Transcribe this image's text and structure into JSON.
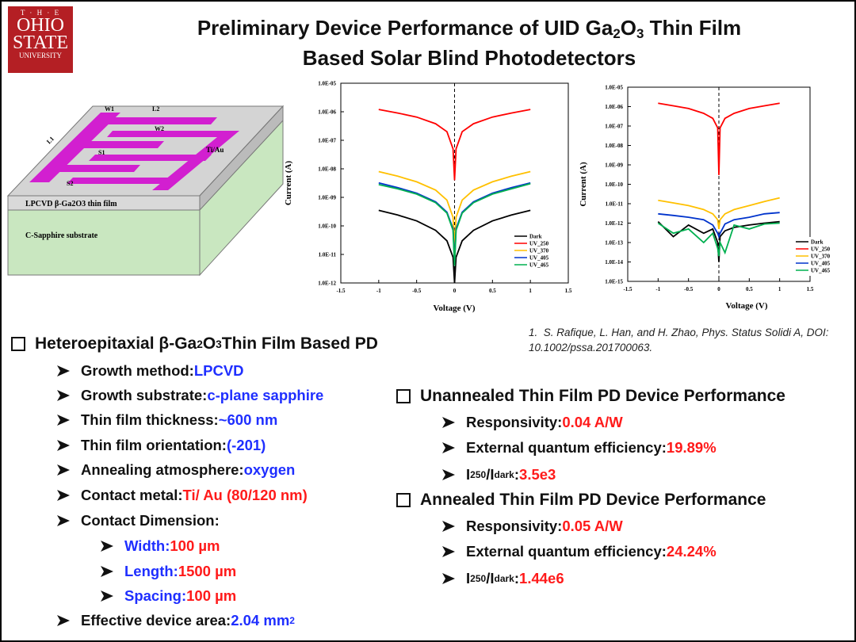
{
  "logo": {
    "top": "T · H · E",
    "name1": "OHIO",
    "name2": "STATE",
    "bottom": "UNIVERSITY"
  },
  "title": {
    "line1": [
      "Preliminary Device Performance of UID Ga",
      "2",
      "O",
      "3",
      " Thin Film"
    ],
    "line2": "Based Solar Blind Photodetectors"
  },
  "diagram": {
    "labels": [
      "W1",
      "L2",
      "W2",
      "L1",
      "S1",
      "Ti/Au",
      "S2"
    ],
    "film": "LPCVD β-Ga2O3 thin film",
    "substrate": "C-Sapphire substrate"
  },
  "reference": {
    "number": "1.",
    "text": "S. Rafique, L. Han, and H. Zhao, Phys. Status Solidi A, DOI: 10.1002/pssa.201700063."
  },
  "left": {
    "heading": [
      "Heteroepitaxial β-Ga",
      "2",
      "O",
      "3",
      " Thin Film Based PD"
    ],
    "items": [
      {
        "label": "Growth method: ",
        "value": "LPCVD"
      },
      {
        "label": "Growth substrate: ",
        "value": "c-plane sapphire"
      },
      {
        "label": "Thin film thickness: ",
        "value": "~600 nm"
      },
      {
        "label": "Thin film orientation: ",
        "value": "(-201)"
      },
      {
        "label": "Annealing atmosphere: ",
        "value": "oxygen"
      },
      {
        "label": "Contact metal: ",
        "value": "Ti/ Au (80/120 nm)"
      },
      {
        "label": "Contact Dimension:"
      }
    ],
    "subitems": [
      {
        "label": "Width: ",
        "value": "100 µm"
      },
      {
        "label": "Length: ",
        "value": "1500 µm"
      },
      {
        "label": "Spacing: ",
        "value": "100 µm"
      }
    ],
    "last": {
      "label": "Effective device area: ",
      "value": "2.04 mm",
      "sup": "2"
    }
  },
  "right": [
    {
      "heading": "Unannealed Thin Film PD Device Performance",
      "responsivity": {
        "label": "Responsivity: ",
        "value": "0.04 A/W"
      },
      "eqe": {
        "label": "External quantum efficiency: ",
        "value": "19.89%"
      },
      "ratio": {
        "label": [
          "I",
          "250",
          "/I",
          "dark",
          ": "
        ],
        "value": "3.5e3"
      }
    },
    {
      "heading": "Annealed Thin Film PD Device Performance",
      "responsivity": {
        "label": "Responsivity: ",
        "value": "0.05 A/W"
      },
      "eqe": {
        "label": "External quantum efficiency: ",
        "value": "24.24%"
      },
      "ratio": {
        "label": [
          "I",
          "250",
          "/I",
          "dark",
          ": "
        ],
        "value": "1.44e6"
      }
    }
  ],
  "chart_data": [
    {
      "type": "line",
      "xlabel": "Voltage (V)",
      "ylabel": "Current (A)",
      "log_y": true,
      "legend": "lower right",
      "reference_line_x": 0,
      "xlim": [
        -1.5,
        1.5
      ],
      "xticks": [
        -1.5,
        -1,
        -0.5,
        0,
        0.5,
        1,
        1.5
      ],
      "ylim": [
        1e-12,
        1e-05
      ],
      "yticks": [
        {
          "value": 1e-12,
          "label": "1.0E-12"
        },
        {
          "value": 1e-11,
          "label": "1.0E-11"
        },
        {
          "value": 1e-10,
          "label": "1.0E-10"
        },
        {
          "value": 1e-09,
          "label": "1.0E-09"
        },
        {
          "value": 1e-08,
          "label": "1.0E-08"
        },
        {
          "value": 1e-07,
          "label": "1.0E-07"
        },
        {
          "value": 1e-06,
          "label": "1.0E-06"
        },
        {
          "value": 1e-05,
          "label": "1.0E-05"
        }
      ],
      "x": [
        -1,
        -0.75,
        -0.5,
        -0.25,
        -0.1,
        -0.02,
        0,
        0.02,
        0.1,
        0.25,
        0.5,
        0.75,
        1
      ],
      "series": [
        {
          "name": "Dark",
          "color": "#000000",
          "values": [
            3.5e-10,
            2.4e-10,
            1.5e-10,
            7e-11,
            3e-11,
            8e-12,
            1e-12,
            8e-12,
            3e-11,
            7e-11,
            1.5e-10,
            2.4e-10,
            3.5e-10
          ]
        },
        {
          "name": "UV_250",
          "color": "#ff0000",
          "values": [
            1.2e-06,
            9e-07,
            6.5e-07,
            3.8e-07,
            2e-07,
            5e-08,
            4e-09,
            5e-08,
            2e-07,
            3.8e-07,
            6.5e-07,
            9e-07,
            1.2e-06
          ]
        },
        {
          "name": "UV_370",
          "color": "#ffc000",
          "values": [
            8e-09,
            5.5e-09,
            3.5e-09,
            1.8e-09,
            8e-10,
            2e-10,
            2e-11,
            2e-10,
            8e-10,
            1.8e-09,
            3.5e-09,
            5.5e-09,
            8e-09
          ]
        },
        {
          "name": "UV_405",
          "color": "#0033cc",
          "values": [
            3.2e-09,
            2.2e-09,
            1.4e-09,
            7e-10,
            3e-10,
            8e-11,
            5e-12,
            8e-11,
            3e-10,
            7e-10,
            1.4e-09,
            2.2e-09,
            3.2e-09
          ]
        },
        {
          "name": "UV_465",
          "color": "#00b050",
          "values": [
            2.8e-09,
            2e-09,
            1.3e-09,
            6.5e-10,
            2.8e-10,
            7e-11,
            4e-12,
            7e-11,
            2.8e-10,
            6.5e-10,
            1.3e-09,
            2e-09,
            3e-09
          ]
        }
      ]
    },
    {
      "type": "line",
      "xlabel": "Voltage (V)",
      "ylabel": "Current (A)",
      "log_y": true,
      "legend": "lower right",
      "reference_line_x": 0,
      "xlim": [
        -1.5,
        1.5
      ],
      "xticks": [
        -1.5,
        -1,
        -0.5,
        0,
        0.5,
        1,
        1.5
      ],
      "ylim": [
        1e-15,
        1e-05
      ],
      "yticks": [
        {
          "value": 1e-15,
          "label": "1.0E-15"
        },
        {
          "value": 1e-14,
          "label": "1.0E-14"
        },
        {
          "value": 1e-13,
          "label": "1.0E-13"
        },
        {
          "value": 1e-12,
          "label": "1.0E-12"
        },
        {
          "value": 1e-11,
          "label": "1.0E-11"
        },
        {
          "value": 1e-10,
          "label": "1.0E-10"
        },
        {
          "value": 1e-09,
          "label": "1.0E-09"
        },
        {
          "value": 1e-08,
          "label": "1.0E-08"
        },
        {
          "value": 1e-07,
          "label": "1.0E-07"
        },
        {
          "value": 1e-06,
          "label": "1.0E-06"
        },
        {
          "value": 1e-05,
          "label": "1.0E-05"
        }
      ],
      "x": [
        -1,
        -0.75,
        -0.5,
        -0.25,
        -0.1,
        -0.02,
        0,
        0.02,
        0.1,
        0.25,
        0.5,
        0.75,
        1
      ],
      "series": [
        {
          "name": "Dark",
          "color": "#000000",
          "values": [
            1.2e-12,
            2e-13,
            8e-13,
            3e-13,
            5e-13,
            1e-13,
            1e-14,
            2e-13,
            4e-13,
            6e-13,
            8e-13,
            1e-12,
            1.2e-12
          ]
        },
        {
          "name": "UV_250",
          "color": "#ff0000",
          "values": [
            1.5e-06,
            1.1e-06,
            8e-07,
            4.5e-07,
            2.5e-07,
            8e-08,
            3e-10,
            8e-08,
            2.5e-07,
            4.5e-07,
            8e-07,
            1.1e-06,
            1.5e-06
          ]
        },
        {
          "name": "UV_370",
          "color": "#ffc000",
          "values": [
            1.5e-11,
            1.1e-11,
            8e-12,
            5e-12,
            3e-12,
            1.5e-12,
            5e-13,
            1.5e-12,
            3e-12,
            5e-12,
            8e-12,
            1.3e-11,
            2e-11
          ]
        },
        {
          "name": "UV_405",
          "color": "#0033cc",
          "values": [
            3e-12,
            2.5e-12,
            2e-12,
            1.5e-12,
            8e-13,
            3e-13,
            2e-13,
            3e-13,
            9e-13,
            1.5e-12,
            2e-12,
            3e-12,
            3.5e-12
          ]
        },
        {
          "name": "UV_465",
          "color": "#00b050",
          "values": [
            1e-12,
            3e-13,
            5e-13,
            1e-13,
            3e-13,
            5e-14,
            2e-14,
            1e-13,
            3e-14,
            8e-13,
            5e-13,
            9e-13,
            1e-12
          ]
        }
      ]
    }
  ]
}
